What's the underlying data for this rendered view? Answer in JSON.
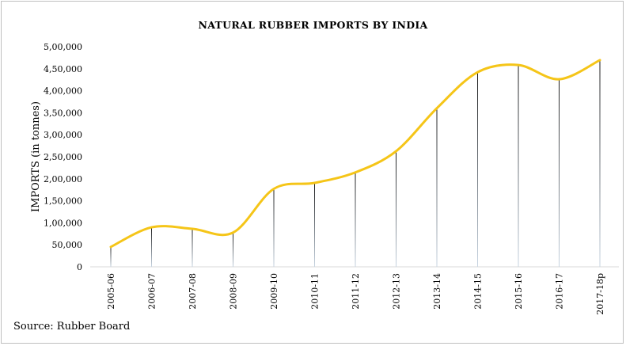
{
  "chart_data": {
    "type": "line",
    "title": "NATURAL RUBBER IMPORTS BY INDIA",
    "xlabel": "",
    "ylabel": "IMPORTS (in tonnes)",
    "categories": [
      "2005-06",
      "2006-07",
      "2007-08",
      "2008-09",
      "2009-10",
      "2010-11",
      "2011-12",
      "2012-13",
      "2013-14",
      "2014-15",
      "2015-16",
      "2016-17",
      "2017-18p"
    ],
    "series": [
      {
        "name": "Imports",
        "values": [
          45285,
          89799,
          86394,
          77762,
          177130,
          190692,
          214433,
          262753,
          360263,
          442130,
          458374,
          426188,
          469542
        ]
      }
    ],
    "ylim": [
      0,
      500000
    ],
    "yticks": [
      0,
      50000,
      100000,
      150000,
      200000,
      250000,
      300000,
      350000,
      400000,
      450000,
      500000
    ],
    "ytick_labels": [
      "0",
      "50,000",
      "1,00,000",
      "1,50,000",
      "2,00,000",
      "2,50,000",
      "3,00,000",
      "3,50,000",
      "4,00,000",
      "4,50,000",
      "5,00,000"
    ],
    "grid": false,
    "line_color": "#f5c518",
    "drop_line_color": "#1a1a1a"
  },
  "source": "Source: Rubber Board"
}
